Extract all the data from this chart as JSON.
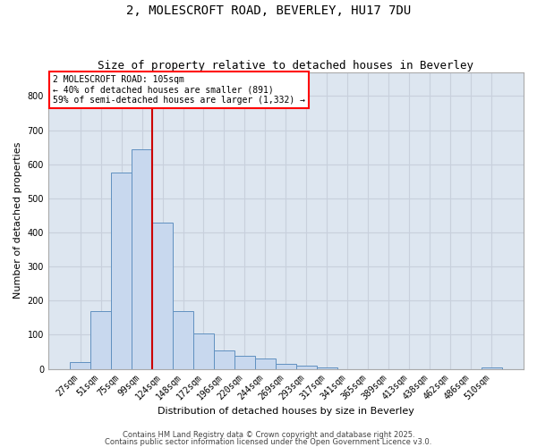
{
  "title": "2, MOLESCROFT ROAD, BEVERLEY, HU17 7DU",
  "subtitle": "Size of property relative to detached houses in Beverley",
  "xlabel": "Distribution of detached houses by size in Beverley",
  "ylabel": "Number of detached properties",
  "bar_color": "#c8d8ee",
  "bar_edge_color": "#6090c0",
  "grid_color": "#c8d0dc",
  "background_color": "#dde6f0",
  "vline_color": "#cc0000",
  "vline_x_idx": 3,
  "categories": [
    "27sqm",
    "51sqm",
    "75sqm",
    "99sqm",
    "124sqm",
    "148sqm",
    "172sqm",
    "196sqm",
    "220sqm",
    "244sqm",
    "269sqm",
    "293sqm",
    "317sqm",
    "341sqm",
    "365sqm",
    "389sqm",
    "413sqm",
    "438sqm",
    "462sqm",
    "486sqm",
    "510sqm"
  ],
  "values": [
    20,
    168,
    575,
    645,
    430,
    170,
    103,
    55,
    38,
    30,
    15,
    10,
    3,
    0,
    0,
    0,
    0,
    0,
    0,
    0,
    5
  ],
  "ylim": [
    0,
    870
  ],
  "yticks": [
    0,
    100,
    200,
    300,
    400,
    500,
    600,
    700,
    800
  ],
  "annotation_text": "2 MOLESCROFT ROAD: 105sqm\n← 40% of detached houses are smaller (891)\n59% of semi-detached houses are larger (1,332) →",
  "footer1": "Contains HM Land Registry data © Crown copyright and database right 2025.",
  "footer2": "Contains public sector information licensed under the Open Government Licence v3.0.",
  "title_fontsize": 10,
  "subtitle_fontsize": 9,
  "tick_fontsize": 7,
  "ylabel_fontsize": 8,
  "xlabel_fontsize": 8,
  "annot_fontsize": 7,
  "footer_fontsize": 6
}
